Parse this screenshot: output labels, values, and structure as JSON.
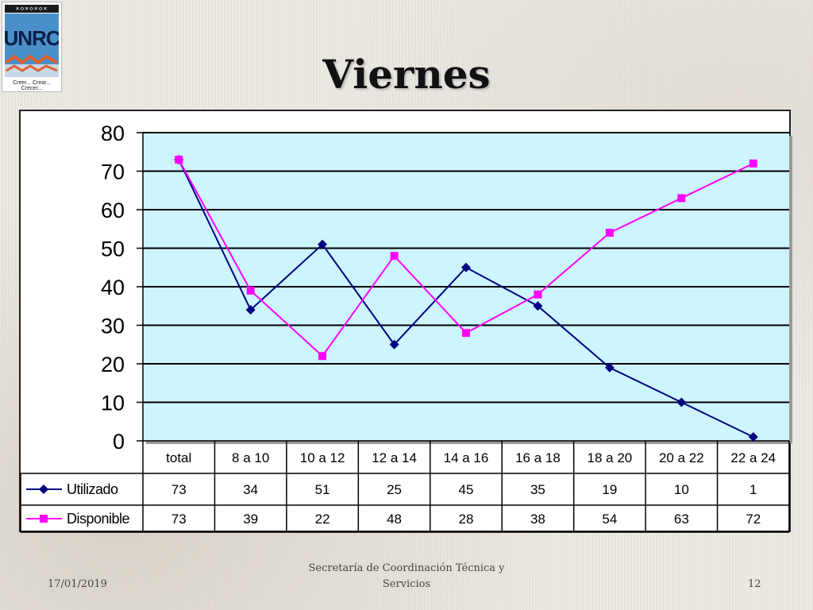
{
  "slide": {
    "title": "Viernes",
    "logo_text": "UNRC",
    "logo_motto": "Creer... Crear... Crecer...",
    "footer_date": "17/01/2019",
    "footer_center": "Secretaría de Coordinación Técnica y Servicios",
    "page_number": "12"
  },
  "chart_data": {
    "type": "line",
    "title": "",
    "xlabel": "",
    "ylabel": "",
    "ylim": [
      0,
      80
    ],
    "yticks": [
      0,
      10,
      20,
      30,
      40,
      50,
      60,
      70,
      80
    ],
    "grid": true,
    "legend": "data-table-left",
    "plot_background": "#ccf5ff",
    "categories": [
      "total",
      "8 a 10",
      "10 a 12",
      "12 a 14",
      "14 a 16",
      "16 a 18",
      "18 a 20",
      "20 a 22",
      "22 a 24"
    ],
    "series": [
      {
        "name": "Utilizado",
        "marker": "diamond",
        "color": "#000080",
        "values": [
          73,
          34,
          51,
          25,
          45,
          35,
          19,
          10,
          1
        ]
      },
      {
        "name": "Disponible",
        "marker": "square",
        "color": "#ff00ff",
        "values": [
          73,
          39,
          22,
          48,
          28,
          38,
          54,
          63,
          72
        ]
      }
    ]
  }
}
